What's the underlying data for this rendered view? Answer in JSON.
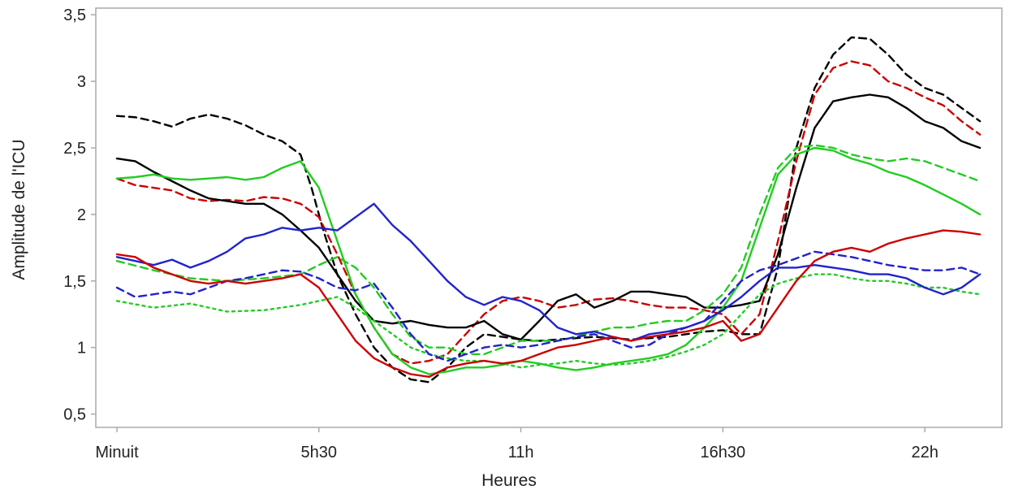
{
  "chart_data": {
    "type": "line",
    "xlabel": "Heures",
    "ylabel": "Amplitude de l'ICU",
    "xlim": [
      0,
      24
    ],
    "ylim": [
      0.4,
      3.55
    ],
    "yticks": [
      0.5,
      1,
      1.5,
      2,
      2.5,
      3,
      3.5
    ],
    "ytick_labels": [
      "0,5",
      "1",
      "1,5",
      "2",
      "2,5",
      "3",
      "3,5"
    ],
    "xticks": [
      0,
      5.5,
      11,
      16.5,
      22
    ],
    "xtick_labels": [
      "Minuit",
      "5h30",
      "11h",
      "16h30",
      "22h"
    ],
    "grid": false,
    "legend": "none",
    "series": [
      {
        "color": "#000000",
        "dash": "dashed",
        "x": [
          0,
          0.5,
          1,
          1.5,
          2,
          2.5,
          3,
          3.5,
          4,
          4.5,
          5,
          5.3,
          5.6,
          6,
          6.5,
          7,
          7.5,
          8,
          8.5,
          9,
          9.5,
          10,
          10.5,
          11,
          11.5,
          12,
          12.5,
          13,
          13.5,
          14,
          14.5,
          15,
          15.5,
          16,
          16.5,
          17,
          17.5,
          18,
          18.5,
          19,
          19.5,
          20,
          20.5,
          21,
          21.5,
          22,
          22.5,
          23,
          23.5
        ],
        "y": [
          2.74,
          2.73,
          2.7,
          2.66,
          2.72,
          2.75,
          2.72,
          2.67,
          2.6,
          2.55,
          2.45,
          2.2,
          1.9,
          1.55,
          1.25,
          1.0,
          0.85,
          0.76,
          0.74,
          0.85,
          1.0,
          1.1,
          1.08,
          1.06,
          1.05,
          1.06,
          1.07,
          1.08,
          1.07,
          1.06,
          1.07,
          1.08,
          1.1,
          1.12,
          1.13,
          1.1,
          1.1,
          1.6,
          2.5,
          2.95,
          3.2,
          3.33,
          3.32,
          3.2,
          3.05,
          2.95,
          2.9,
          2.8,
          2.7
        ]
      },
      {
        "color": "#cc0000",
        "dash": "dashed",
        "x": [
          0,
          0.5,
          1,
          1.5,
          2,
          2.5,
          3,
          3.5,
          4,
          4.5,
          5,
          5.5,
          6,
          6.5,
          7,
          7.5,
          8,
          8.5,
          9,
          9.5,
          10,
          10.5,
          11,
          11.5,
          12,
          12.5,
          13,
          13.5,
          14,
          14.5,
          15,
          15.5,
          16,
          16.5,
          17,
          17.5,
          18,
          18.5,
          19,
          19.5,
          20,
          20.5,
          21,
          21.5,
          22,
          22.5,
          23,
          23.5
        ],
        "y": [
          2.27,
          2.22,
          2.2,
          2.18,
          2.12,
          2.1,
          2.11,
          2.1,
          2.13,
          2.12,
          2.08,
          1.98,
          1.7,
          1.4,
          1.15,
          0.95,
          0.88,
          0.9,
          0.95,
          1.1,
          1.25,
          1.35,
          1.38,
          1.35,
          1.3,
          1.32,
          1.36,
          1.37,
          1.35,
          1.32,
          1.3,
          1.3,
          1.28,
          1.25,
          1.1,
          1.25,
          1.8,
          2.4,
          2.9,
          3.1,
          3.15,
          3.12,
          3.0,
          2.95,
          2.88,
          2.82,
          2.7,
          2.6
        ]
      },
      {
        "color": "#000000",
        "dash": "solid",
        "x": [
          0,
          0.5,
          1,
          1.5,
          2,
          2.5,
          3,
          3.5,
          4,
          4.5,
          5,
          5.5,
          6,
          6.5,
          7,
          7.5,
          8,
          8.5,
          9,
          9.5,
          10,
          10.5,
          11,
          11.5,
          12,
          12.5,
          13,
          13.5,
          14,
          14.5,
          15,
          15.5,
          16,
          16.5,
          17,
          17.5,
          18,
          18.5,
          19,
          19.5,
          20,
          20.5,
          21,
          21.5,
          22,
          22.5,
          23,
          23.5
        ],
        "y": [
          2.42,
          2.4,
          2.32,
          2.25,
          2.18,
          2.12,
          2.1,
          2.08,
          2.08,
          2.0,
          1.88,
          1.75,
          1.55,
          1.35,
          1.2,
          1.18,
          1.2,
          1.17,
          1.15,
          1.15,
          1.2,
          1.1,
          1.06,
          1.2,
          1.35,
          1.4,
          1.3,
          1.35,
          1.42,
          1.42,
          1.4,
          1.38,
          1.3,
          1.3,
          1.32,
          1.35,
          1.7,
          2.2,
          2.65,
          2.85,
          2.88,
          2.9,
          2.88,
          2.8,
          2.7,
          2.65,
          2.55,
          2.5
        ]
      },
      {
        "color": "#22cc22",
        "dash": "solid",
        "x": [
          0,
          0.5,
          1,
          1.5,
          2,
          2.5,
          3,
          3.5,
          4,
          4.5,
          5,
          5.5,
          6,
          6.5,
          7,
          7.5,
          8,
          8.5,
          9,
          9.5,
          10,
          10.5,
          11,
          11.5,
          12,
          12.5,
          13,
          13.5,
          14,
          14.5,
          15,
          15.5,
          16,
          16.5,
          17,
          17.5,
          18,
          18.5,
          19,
          19.5,
          20,
          20.5,
          21,
          21.5,
          22,
          22.5,
          23,
          23.5
        ],
        "y": [
          2.27,
          2.28,
          2.3,
          2.27,
          2.26,
          2.27,
          2.28,
          2.26,
          2.28,
          2.35,
          2.4,
          2.2,
          1.8,
          1.4,
          1.15,
          0.95,
          0.85,
          0.8,
          0.82,
          0.85,
          0.85,
          0.87,
          0.9,
          0.88,
          0.85,
          0.83,
          0.85,
          0.88,
          0.9,
          0.92,
          0.95,
          1.02,
          1.15,
          1.3,
          1.5,
          1.9,
          2.3,
          2.45,
          2.5,
          2.48,
          2.42,
          2.38,
          2.32,
          2.28,
          2.22,
          2.15,
          2.08,
          2.0
        ]
      },
      {
        "color": "#22cc22",
        "dash": "dashed",
        "x": [
          0,
          1,
          2,
          3,
          4,
          5,
          5.5,
          6,
          6.5,
          7,
          7.5,
          8,
          8.5,
          9,
          9.5,
          10,
          10.5,
          11,
          11.5,
          12,
          12.5,
          13,
          13.5,
          14,
          14.5,
          15,
          15.5,
          16,
          16.5,
          17,
          17.5,
          18,
          18.5,
          19,
          19.5,
          20,
          20.5,
          21,
          21.5,
          22,
          22.5,
          23,
          23.5
        ],
        "y": [
          1.65,
          1.58,
          1.52,
          1.5,
          1.52,
          1.55,
          1.62,
          1.68,
          1.6,
          1.45,
          1.25,
          1.08,
          1.0,
          1.0,
          0.95,
          0.95,
          1.0,
          1.05,
          1.05,
          1.05,
          1.08,
          1.12,
          1.15,
          1.15,
          1.18,
          1.2,
          1.2,
          1.28,
          1.4,
          1.6,
          2.0,
          2.35,
          2.5,
          2.52,
          2.5,
          2.45,
          2.42,
          2.4,
          2.42,
          2.4,
          2.35,
          2.3,
          2.25
        ]
      },
      {
        "color": "#22cc22",
        "dash": "dotted",
        "x": [
          0,
          1,
          2,
          3,
          4,
          5,
          5.5,
          6,
          6.5,
          7,
          7.5,
          8,
          8.5,
          9,
          9.5,
          10,
          10.5,
          11,
          11.5,
          12,
          12.5,
          13,
          13.5,
          14,
          14.5,
          15,
          15.5,
          16,
          16.5,
          17,
          17.5,
          18,
          18.5,
          19,
          19.5,
          20,
          20.5,
          21,
          21.5,
          22,
          22.5,
          23,
          23.5
        ],
        "y": [
          1.35,
          1.3,
          1.33,
          1.27,
          1.28,
          1.32,
          1.35,
          1.38,
          1.3,
          1.2,
          1.1,
          1.0,
          0.95,
          0.92,
          0.9,
          0.9,
          0.88,
          0.85,
          0.87,
          0.88,
          0.9,
          0.88,
          0.87,
          0.88,
          0.9,
          0.93,
          0.97,
          1.02,
          1.1,
          1.25,
          1.4,
          1.48,
          1.52,
          1.55,
          1.55,
          1.52,
          1.5,
          1.5,
          1.48,
          1.45,
          1.45,
          1.42,
          1.4
        ]
      },
      {
        "color": "#2222cc",
        "dash": "solid",
        "x": [
          0,
          0.5,
          1,
          1.5,
          2,
          2.5,
          3,
          3.5,
          4,
          4.5,
          5,
          5.5,
          6,
          6.5,
          7,
          7.5,
          8,
          8.5,
          9,
          9.5,
          10,
          10.5,
          11,
          11.5,
          12,
          12.5,
          13,
          13.5,
          14,
          14.5,
          15,
          15.5,
          16,
          16.5,
          17,
          17.5,
          18,
          18.5,
          19,
          19.5,
          20,
          20.5,
          21,
          21.5,
          22,
          22.5,
          23,
          23.5
        ],
        "y": [
          1.68,
          1.65,
          1.62,
          1.66,
          1.6,
          1.65,
          1.72,
          1.82,
          1.85,
          1.9,
          1.88,
          1.9,
          1.88,
          1.98,
          2.08,
          1.92,
          1.8,
          1.65,
          1.5,
          1.38,
          1.32,
          1.38,
          1.35,
          1.28,
          1.15,
          1.1,
          1.12,
          1.08,
          1.05,
          1.1,
          1.12,
          1.15,
          1.2,
          1.28,
          1.38,
          1.5,
          1.6,
          1.6,
          1.62,
          1.6,
          1.58,
          1.55,
          1.55,
          1.52,
          1.45,
          1.4,
          1.45,
          1.55
        ]
      },
      {
        "color": "#2222cc",
        "dash": "dashed",
        "x": [
          0,
          0.5,
          1,
          1.5,
          2,
          2.5,
          3,
          3.5,
          4,
          4.5,
          5,
          5.5,
          6,
          6.5,
          7,
          7.5,
          8,
          8.5,
          9,
          9.5,
          10,
          10.5,
          11,
          11.5,
          12,
          12.5,
          13,
          13.5,
          14,
          14.5,
          15,
          15.5,
          16,
          16.5,
          17,
          17.5,
          18,
          18.5,
          19,
          19.5,
          20,
          20.5,
          21,
          21.5,
          22,
          22.5,
          23,
          23.5
        ],
        "y": [
          1.45,
          1.38,
          1.4,
          1.42,
          1.4,
          1.45,
          1.5,
          1.52,
          1.55,
          1.58,
          1.57,
          1.52,
          1.45,
          1.43,
          1.48,
          1.3,
          1.1,
          0.95,
          0.9,
          0.95,
          1.0,
          1.02,
          1.0,
          1.02,
          1.05,
          1.08,
          1.1,
          1.05,
          1.0,
          1.02,
          1.1,
          1.15,
          1.2,
          1.35,
          1.5,
          1.58,
          1.62,
          1.67,
          1.72,
          1.7,
          1.68,
          1.65,
          1.62,
          1.6,
          1.58,
          1.58,
          1.6,
          1.55
        ]
      },
      {
        "color": "#cc0000",
        "dash": "solid",
        "x": [
          0,
          0.5,
          1,
          1.5,
          2,
          2.5,
          3,
          3.5,
          4,
          4.5,
          5,
          5.5,
          6,
          6.5,
          7,
          7.5,
          8,
          8.5,
          9,
          9.5,
          10,
          10.5,
          11,
          11.5,
          12,
          12.5,
          13,
          13.5,
          14,
          14.5,
          15,
          15.5,
          16,
          16.5,
          17,
          17.5,
          18,
          18.5,
          19,
          19.5,
          20,
          20.5,
          21,
          21.5,
          22,
          22.5,
          23,
          23.5
        ],
        "y": [
          1.7,
          1.68,
          1.6,
          1.55,
          1.5,
          1.48,
          1.5,
          1.48,
          1.5,
          1.52,
          1.55,
          1.45,
          1.25,
          1.05,
          0.92,
          0.85,
          0.8,
          0.78,
          0.85,
          0.88,
          0.9,
          0.88,
          0.9,
          0.95,
          1.0,
          1.02,
          1.05,
          1.08,
          1.05,
          1.08,
          1.1,
          1.12,
          1.15,
          1.2,
          1.05,
          1.1,
          1.3,
          1.5,
          1.65,
          1.72,
          1.75,
          1.72,
          1.78,
          1.82,
          1.85,
          1.88,
          1.87,
          1.85
        ]
      }
    ]
  }
}
